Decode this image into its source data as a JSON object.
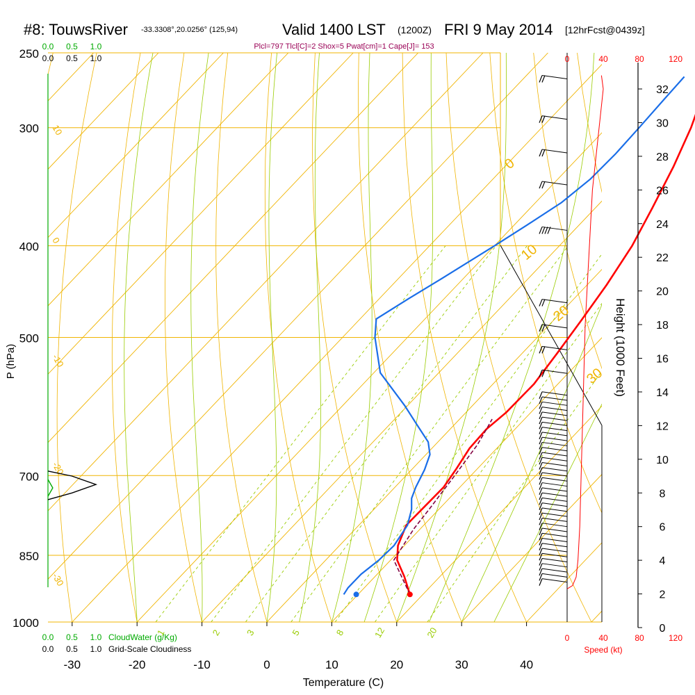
{
  "header": {
    "station": "#8: TouwsRiver",
    "coords": "-33.3308°,20.0256° (125,94)",
    "valid": "Valid 1400 LST",
    "zulu": "(1200Z)",
    "date": "FRI 9 May 2014",
    "forecast": "[12hrFcst@0439z]",
    "indices": "Plcl=797 Tlcl[C]=2 Shox=5 Pwat[cm]=1 Cape[J]= 153"
  },
  "colors": {
    "isotherm": "#f0b400",
    "mixing_ratio": "#99cc00",
    "temperature": "#ff0000",
    "dewpoint": "#1a6ee8",
    "parcel": "#800040",
    "cloud_water": "#00aa00",
    "indices_text": "#990055",
    "speed": "#ff0000"
  },
  "chart_data": {
    "type": "line",
    "title": "",
    "xlabel": "Temperature (C)",
    "ylabel": "P (hPa)",
    "y2label": "Height (1000 Feet)",
    "xlim": [
      -35,
      47
    ],
    "ylim": [
      1000,
      250
    ],
    "x_ticks": [
      "-30",
      "-20",
      "-10",
      "0",
      "10",
      "20",
      "30",
      "40"
    ],
    "pressure_ticks": [
      "250",
      "300",
      "400",
      "500",
      "700",
      "850",
      "1000"
    ],
    "height_ticks": [
      "0",
      "2",
      "4",
      "6",
      "8",
      "10",
      "12",
      "14",
      "16",
      "18",
      "20",
      "22",
      "24",
      "26",
      "28",
      "30",
      "32"
    ],
    "speed_ticks": [
      "0",
      "40",
      "80",
      "120"
    ],
    "speed_label": "Speed (kt)",
    "cloud_ticks": [
      "0.0",
      "0.5",
      "1.0"
    ],
    "cloud_water_label": "CloudWater (g/Kg)",
    "cloudiness_label": "Grid-Scale Cloudiness",
    "mixing_ratio_labels": [
      "1",
      "2",
      "3",
      "5",
      "8",
      "12",
      "20"
    ],
    "dry_adiabat_labels": [
      "0",
      "10",
      "20",
      "30"
    ],
    "isotherm_labels_left": [
      "10",
      "0",
      "-10",
      "-20",
      "-30"
    ],
    "series": [
      {
        "name": "Temperature",
        "points": [
          [
            18,
            935
          ],
          [
            14.5,
            895
          ],
          [
            11,
            860
          ],
          [
            9,
            830
          ],
          [
            7.3,
            790
          ],
          [
            7.5,
            720
          ],
          [
            6.8,
            690
          ],
          [
            5.8,
            655
          ],
          [
            5.6,
            625
          ],
          [
            6.2,
            600
          ],
          [
            6.3,
            560
          ],
          [
            5.4,
            520
          ],
          [
            4.3,
            480
          ],
          [
            3.0,
            440
          ],
          [
            1.2,
            400
          ],
          [
            -1.2,
            365
          ],
          [
            -4.0,
            330
          ],
          [
            -7.0,
            300
          ],
          [
            -9.6,
            280
          ],
          [
            -12.0,
            265
          ]
        ]
      },
      {
        "name": "Dewpoint",
        "points": [
          [
            7.8,
            935
          ],
          [
            7.5,
            920
          ],
          [
            7.5,
            890
          ],
          [
            8.2,
            860
          ],
          [
            8.4,
            830
          ],
          [
            7.5,
            790
          ],
          [
            5.8,
            760
          ],
          [
            4.2,
            740
          ],
          [
            3.2,
            720
          ],
          [
            2.0,
            690
          ],
          [
            0.6,
            665
          ],
          [
            -1.5,
            645
          ],
          [
            -5.5,
            620
          ],
          [
            -10.5,
            590
          ],
          [
            -19.0,
            545
          ],
          [
            -25.0,
            500
          ],
          [
            -27.5,
            478
          ],
          [
            -25.5,
            455
          ],
          [
            -23.5,
            435
          ],
          [
            -20.0,
            400
          ],
          [
            -18.0,
            380
          ],
          [
            -16.0,
            360
          ],
          [
            -15.0,
            340
          ],
          [
            -14.8,
            320
          ],
          [
            -15.0,
            300
          ],
          [
            -15.3,
            280
          ],
          [
            -15.5,
            265
          ]
        ]
      },
      {
        "name": "Parcel",
        "points": [
          [
            18,
            935
          ],
          [
            10.5,
            860
          ],
          [
            9.0,
            797
          ],
          [
            8.5,
            760
          ],
          [
            7.5,
            700
          ],
          [
            6.5,
            650
          ],
          [
            5.6,
            625
          ],
          [
            5.0,
            610
          ]
        ]
      }
    ],
    "height_curve_kft": [
      [
        2.3,
        0
      ],
      [
        2.5,
        6
      ],
      [
        3.0,
        10
      ],
      [
        4.0,
        12
      ],
      [
        6.0,
        14
      ],
      [
        10.0,
        16
      ],
      [
        14.0,
        18
      ],
      [
        18.0,
        20
      ],
      [
        22.0,
        24
      ],
      [
        26.0,
        28
      ],
      [
        29.0,
        34
      ],
      [
        32.0,
        40
      ],
      [
        32.8,
        38
      ]
    ],
    "cloudiness_profile": [
      [
        7.6,
        0.0
      ],
      [
        8.0,
        0.5
      ],
      [
        8.5,
        1.0
      ],
      [
        9.0,
        0.5
      ],
      [
        9.3,
        0.0
      ]
    ],
    "cloud_water_profile": [
      [
        7.8,
        0.0
      ],
      [
        8.3,
        0.1
      ],
      [
        8.8,
        0.0
      ]
    ],
    "wind_barbs": [
      {
        "h": 2.7,
        "spd": 10
      },
      {
        "h": 3.0,
        "spd": 10
      },
      {
        "h": 3.3,
        "spd": 10
      },
      {
        "h": 3.6,
        "spd": 10
      },
      {
        "h": 3.9,
        "spd": 10
      },
      {
        "h": 4.2,
        "spd": 10
      },
      {
        "h": 4.5,
        "spd": 10
      },
      {
        "h": 4.8,
        "spd": 10
      },
      {
        "h": 5.1,
        "spd": 10
      },
      {
        "h": 5.4,
        "spd": 10
      },
      {
        "h": 5.7,
        "spd": 10
      },
      {
        "h": 6.0,
        "spd": 10
      },
      {
        "h": 6.3,
        "spd": 10
      },
      {
        "h": 6.6,
        "spd": 10
      },
      {
        "h": 6.9,
        "spd": 10
      },
      {
        "h": 7.2,
        "spd": 10
      },
      {
        "h": 7.5,
        "spd": 10
      },
      {
        "h": 7.8,
        "spd": 10
      },
      {
        "h": 8.1,
        "spd": 10
      },
      {
        "h": 8.4,
        "spd": 10
      },
      {
        "h": 8.7,
        "spd": 10
      },
      {
        "h": 9.0,
        "spd": 10
      },
      {
        "h": 9.3,
        "spd": 10
      },
      {
        "h": 9.6,
        "spd": 10
      },
      {
        "h": 9.9,
        "spd": 10
      },
      {
        "h": 10.2,
        "spd": 10
      },
      {
        "h": 10.5,
        "spd": 10
      },
      {
        "h": 10.8,
        "spd": 10
      },
      {
        "h": 11.1,
        "spd": 10
      },
      {
        "h": 11.4,
        "spd": 10
      },
      {
        "h": 11.7,
        "spd": 10
      },
      {
        "h": 12.0,
        "spd": 10
      },
      {
        "h": 12.3,
        "spd": 10
      },
      {
        "h": 12.6,
        "spd": 10
      },
      {
        "h": 12.9,
        "spd": 10
      },
      {
        "h": 13.2,
        "spd": 10
      },
      {
        "h": 13.5,
        "spd": 10
      },
      {
        "h": 13.8,
        "spd": 10
      },
      {
        "h": 15.1,
        "spd": 20
      },
      {
        "h": 16.5,
        "spd": 20
      },
      {
        "h": 17.8,
        "spd": 20
      },
      {
        "h": 19.3,
        "spd": 20
      },
      {
        "h": 23.6,
        "spd": 40
      },
      {
        "h": 26.3,
        "spd": 20
      },
      {
        "h": 28.2,
        "spd": 20
      },
      {
        "h": 30.2,
        "spd": 20
      },
      {
        "h": 32.6,
        "spd": 20
      }
    ]
  }
}
